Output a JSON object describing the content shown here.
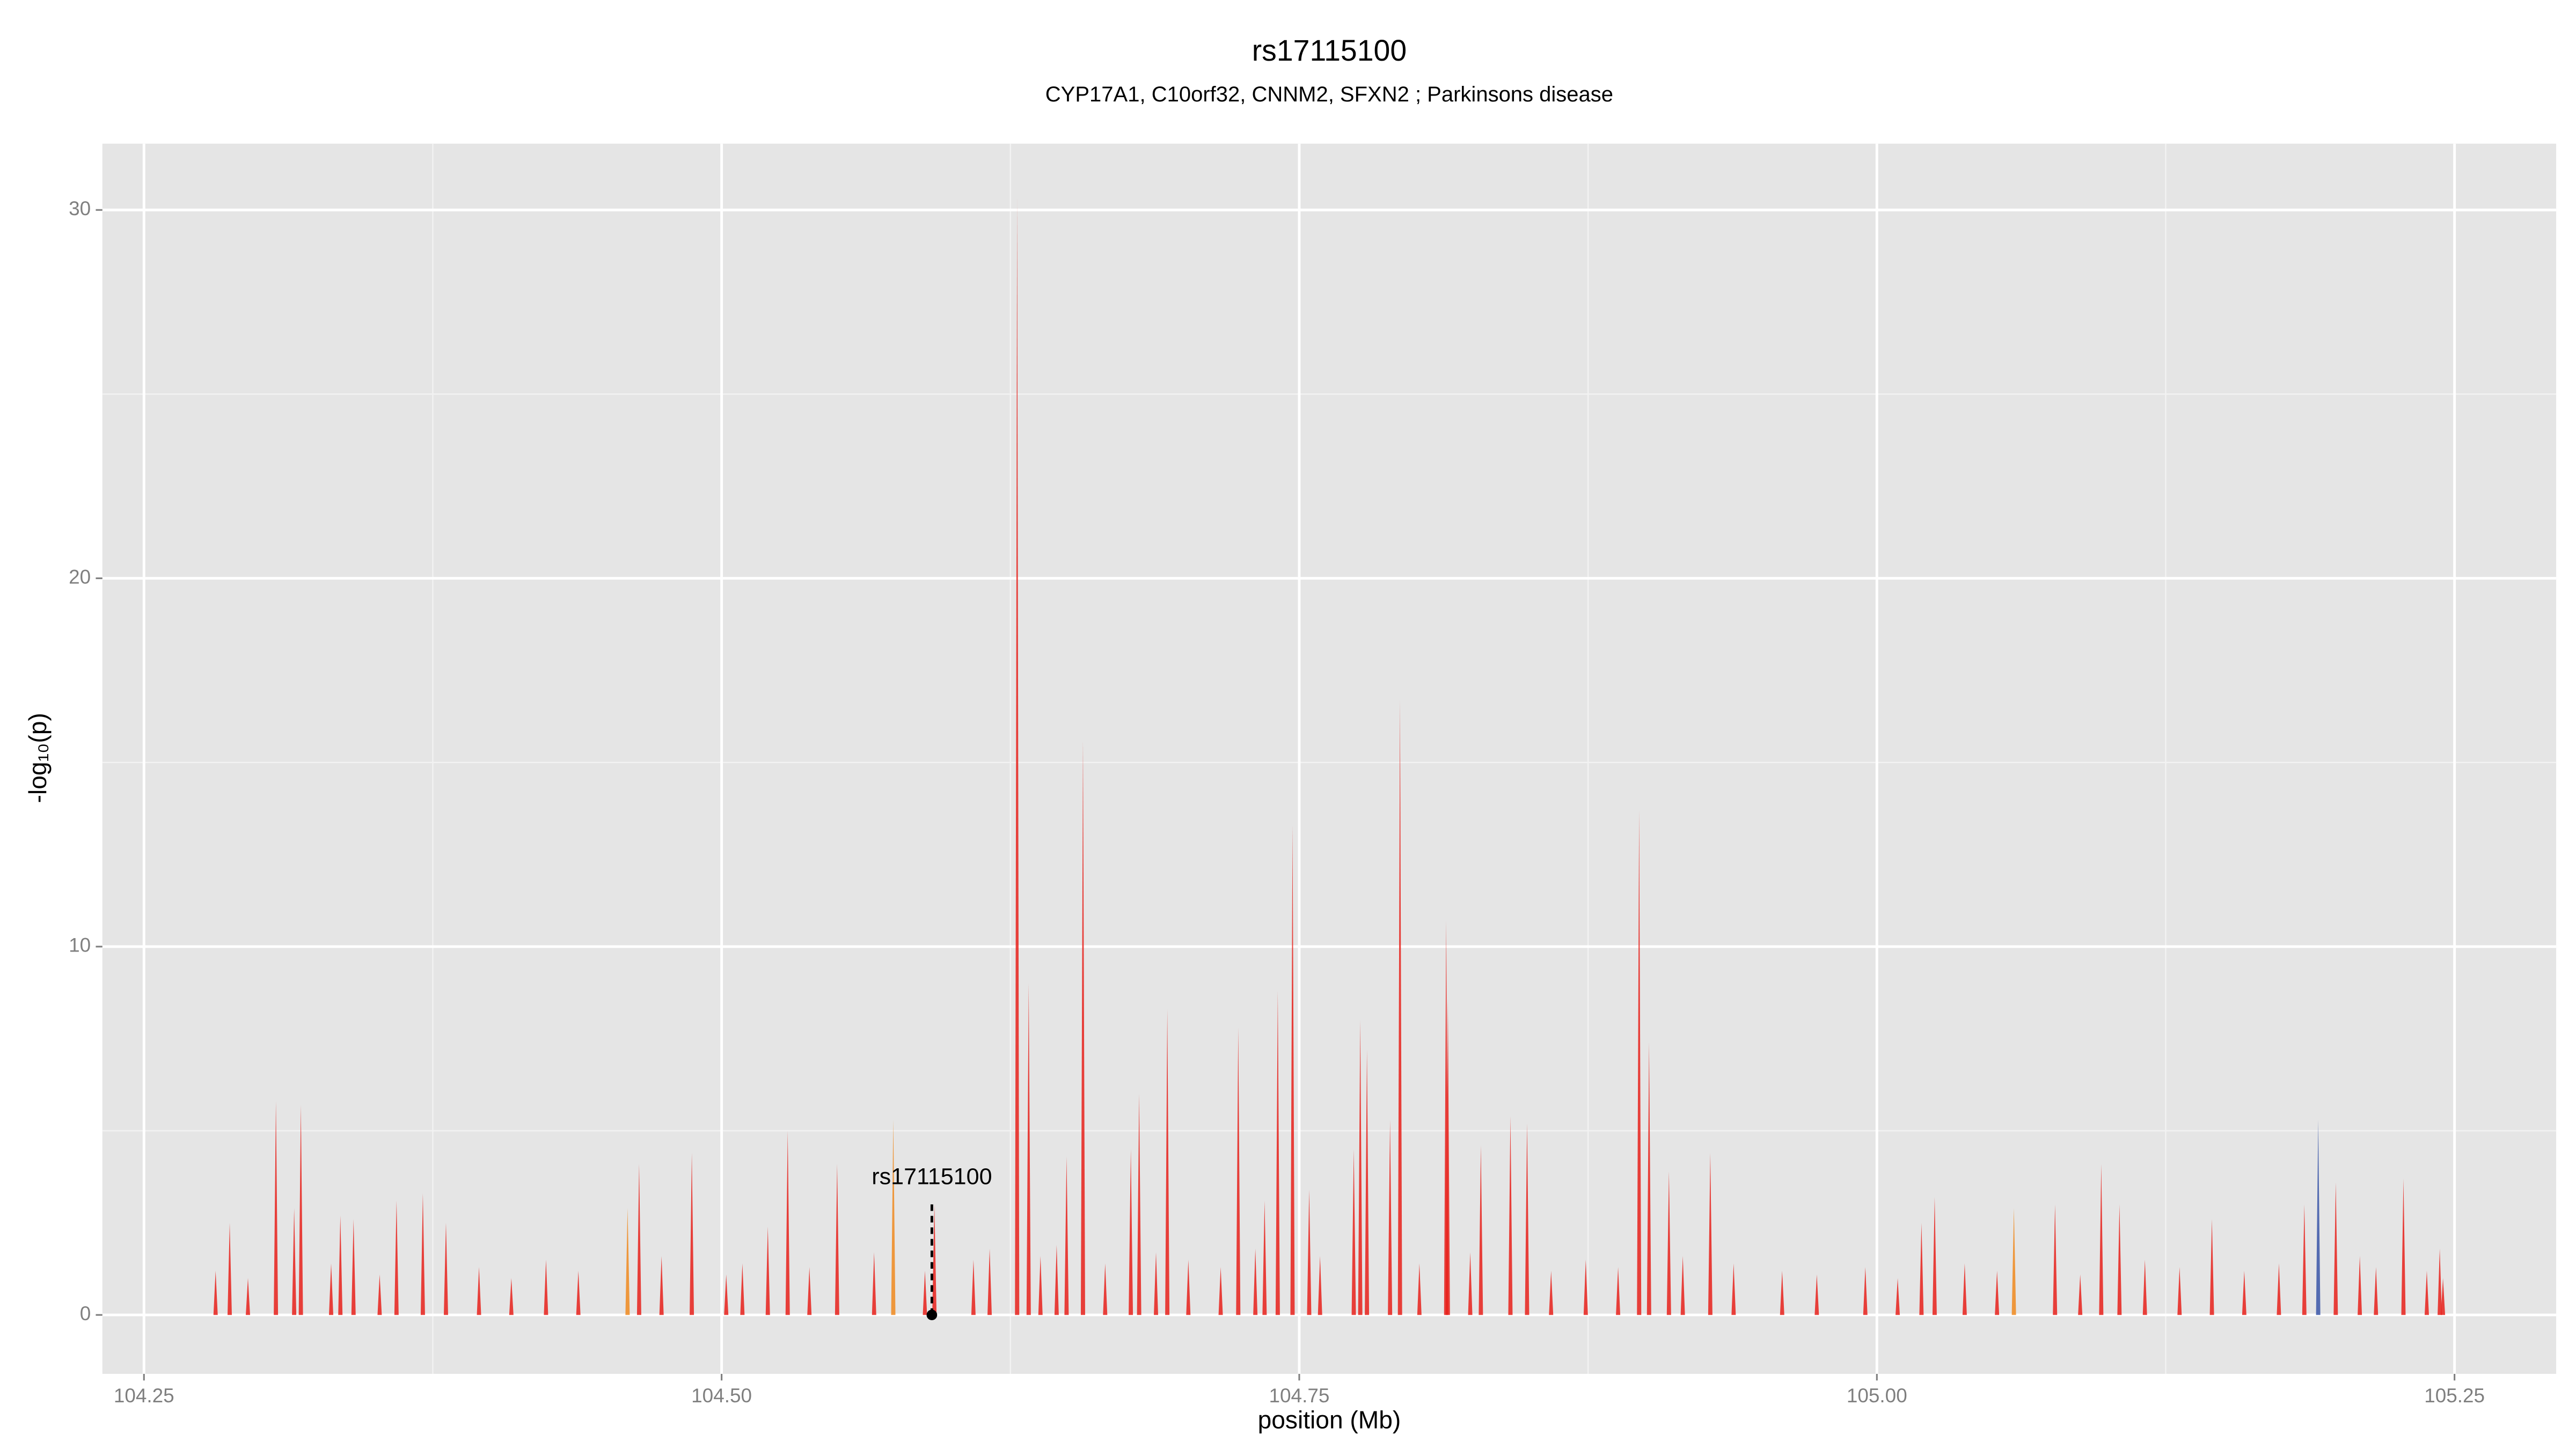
{
  "chart_data": {
    "type": "spikes",
    "title": "rs17115100",
    "subtitle": "CYP17A1, C10orf32, CNNM2, SFXN2 ; Parkinsons disease",
    "xlabel": "position (Mb)",
    "ylabel": "-log₁₀(p)",
    "xlim": [
      104.232,
      105.294
    ],
    "ylim": [
      -1.6,
      31.8
    ],
    "xticks": [
      {
        "value": 104.25,
        "label": "104.25"
      },
      {
        "value": 104.5,
        "label": "104.50"
      },
      {
        "value": 104.75,
        "label": "104.75"
      },
      {
        "value": 105.0,
        "label": "105.00"
      },
      {
        "value": 105.25,
        "label": "105.25"
      }
    ],
    "yticks": [
      0,
      10,
      20,
      30
    ],
    "x_minor_grid": [
      104.375,
      104.625,
      104.875,
      105.125
    ],
    "y_minor_grid": [
      5,
      15,
      25
    ],
    "grid": true,
    "series": [
      {
        "color": "#e8211b",
        "x": [
          104.2871,
          104.3071,
          104.315,
          104.3179,
          104.335,
          104.3407,
          104.3593,
          104.3707,
          104.3807,
          104.4643,
          104.4871,
          104.52,
          104.5286,
          104.55,
          104.5921,
          104.6279,
          104.6329,
          104.6493,
          104.6564,
          104.6771,
          104.6807,
          104.6929,
          104.7236,
          104.735,
          104.7407,
          104.7471,
          104.7543,
          104.7736,
          104.7764,
          104.7793,
          104.7893,
          104.7936,
          104.8136,
          104.8143,
          104.8286,
          104.8414,
          104.8486,
          104.8971,
          104.9014,
          104.91,
          104.9279,
          105.0193,
          105.025,
          105.0771,
          105.0971,
          105.105,
          105.145,
          105.185,
          105.1986,
          105.2279,
          105.2436,
          104.281,
          104.295,
          104.331,
          104.352,
          104.395,
          104.409,
          104.424,
          104.438,
          104.474,
          104.502,
          104.509,
          104.538,
          104.566,
          104.588,
          104.609,
          104.616,
          104.638,
          104.645,
          104.666,
          104.688,
          104.702,
          104.716,
          104.731,
          104.759,
          104.802,
          104.824,
          104.859,
          104.874,
          104.888,
          104.916,
          104.938,
          104.959,
          104.974,
          104.995,
          105.009,
          105.038,
          105.052,
          105.088,
          105.116,
          105.131,
          105.159,
          105.174,
          105.209,
          105.216,
          105.238,
          105.245
        ],
        "values": [
          2.5,
          5.8,
          2.9,
          5.7,
          2.7,
          2.6,
          3.1,
          3.3,
          2.5,
          4.1,
          4.4,
          2.4,
          5.0,
          4.1,
          3.0,
          30.3,
          9.0,
          4.3,
          15.6,
          4.5,
          6.0,
          8.3,
          7.8,
          3.1,
          8.8,
          13.3,
          3.4,
          4.5,
          8.0,
          7.2,
          5.3,
          16.7,
          10.7,
          8.6,
          4.6,
          5.4,
          5.2,
          13.7,
          7.4,
          3.9,
          4.4,
          2.5,
          3.2,
          3.0,
          4.1,
          3.0,
          2.6,
          3.0,
          3.6,
          3.7,
          1.8,
          1.2,
          1.0,
          1.4,
          1.1,
          1.3,
          1.0,
          1.5,
          1.2,
          1.6,
          1.1,
          1.4,
          1.3,
          1.7,
          1.2,
          1.5,
          1.8,
          1.6,
          1.9,
          1.4,
          1.7,
          1.5,
          1.3,
          1.8,
          1.6,
          1.4,
          1.7,
          1.2,
          1.5,
          1.3,
          1.6,
          1.4,
          1.2,
          1.1,
          1.3,
          1.0,
          1.4,
          1.2,
          1.1,
          1.5,
          1.3,
          1.2,
          1.4,
          1.6,
          1.3,
          1.2,
          1.0
        ]
      },
      {
        "color": "#f08a1e",
        "x": [
          104.4593,
          104.5743,
          105.0593
        ],
        "values": [
          2.9,
          5.3,
          2.9
        ]
      },
      {
        "color": "#3a56a8",
        "x": [
          105.191
        ],
        "values": [
          5.3
        ]
      }
    ],
    "annotation": {
      "label": "rs17115100",
      "x": 104.591,
      "y": 0,
      "line_to": 3.0
    }
  }
}
